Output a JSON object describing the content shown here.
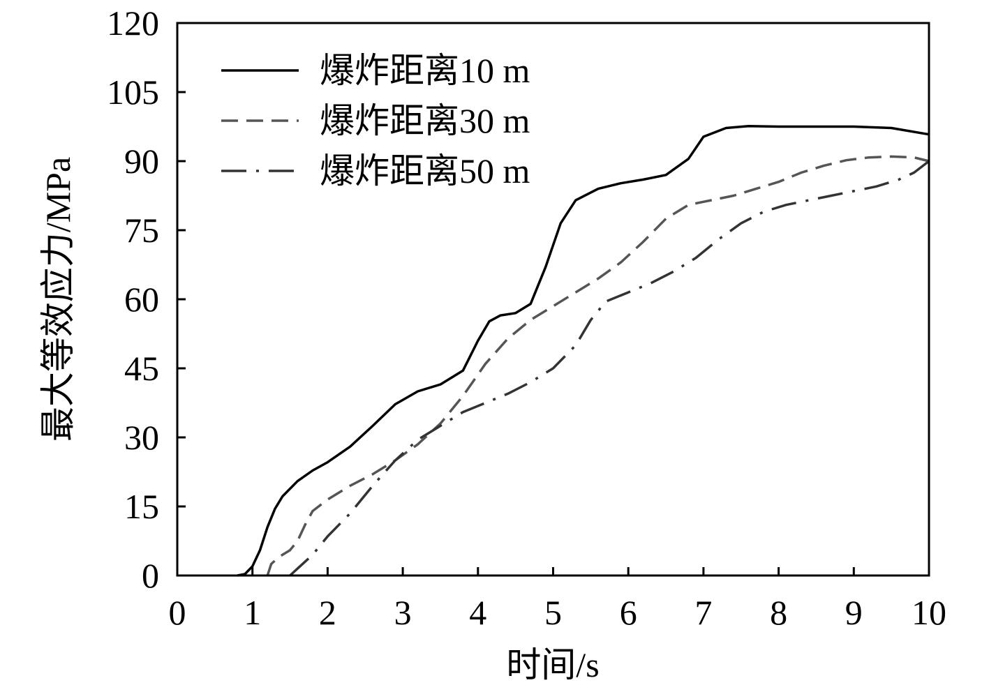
{
  "chart_data": {
    "type": "line",
    "xlabel": "时间/s",
    "ylabel": "最大等效应力/MPa",
    "xlim": [
      0,
      10
    ],
    "ylim": [
      0,
      120
    ],
    "xticks": [
      "0",
      "1",
      "2",
      "3",
      "4",
      "5",
      "6",
      "7",
      "8",
      "9",
      "10"
    ],
    "yticks": [
      "0",
      "15",
      "30",
      "45",
      "60",
      "75",
      "90",
      "105",
      "120"
    ],
    "grid": false,
    "legend_position": "top-left",
    "series": [
      {
        "name": "爆炸距离10 m",
        "color": "#000000",
        "dash": "solid",
        "points": [
          [
            0.8,
            0
          ],
          [
            0.9,
            0.3
          ],
          [
            1.0,
            2
          ],
          [
            1.1,
            5.5
          ],
          [
            1.2,
            10.5
          ],
          [
            1.3,
            14.5
          ],
          [
            1.4,
            17.2
          ],
          [
            1.6,
            20.5
          ],
          [
            1.8,
            22.8
          ],
          [
            2.0,
            24.6
          ],
          [
            2.3,
            28
          ],
          [
            2.6,
            32.5
          ],
          [
            2.9,
            37.2
          ],
          [
            3.2,
            40
          ],
          [
            3.5,
            41.5
          ],
          [
            3.8,
            44.5
          ],
          [
            4.0,
            51
          ],
          [
            4.15,
            55.2
          ],
          [
            4.3,
            56.5
          ],
          [
            4.5,
            57
          ],
          [
            4.7,
            59
          ],
          [
            4.9,
            67
          ],
          [
            5.1,
            76.5
          ],
          [
            5.3,
            81.5
          ],
          [
            5.6,
            84
          ],
          [
            5.9,
            85.2
          ],
          [
            6.2,
            86
          ],
          [
            6.5,
            87
          ],
          [
            6.8,
            90.5
          ],
          [
            7.0,
            95.3
          ],
          [
            7.3,
            97.2
          ],
          [
            7.6,
            97.6
          ],
          [
            8.0,
            97.5
          ],
          [
            8.5,
            97.5
          ],
          [
            9.0,
            97.5
          ],
          [
            9.5,
            97.2
          ],
          [
            10.0,
            95.8
          ]
        ]
      },
      {
        "name": "爆炸距离30 m",
        "color": "#555555",
        "dash": "dashed",
        "points": [
          [
            1.2,
            0
          ],
          [
            1.25,
            2.5
          ],
          [
            1.35,
            4
          ],
          [
            1.5,
            5.5
          ],
          [
            1.6,
            7.5
          ],
          [
            1.7,
            11
          ],
          [
            1.8,
            14
          ],
          [
            2.0,
            16.5
          ],
          [
            2.3,
            19.5
          ],
          [
            2.6,
            22
          ],
          [
            2.9,
            25
          ],
          [
            3.2,
            28.5
          ],
          [
            3.5,
            33
          ],
          [
            3.8,
            39
          ],
          [
            4.1,
            46
          ],
          [
            4.4,
            51.5
          ],
          [
            4.7,
            55.5
          ],
          [
            5.0,
            58.5
          ],
          [
            5.3,
            61.5
          ],
          [
            5.6,
            64.5
          ],
          [
            5.9,
            68
          ],
          [
            6.2,
            72.5
          ],
          [
            6.5,
            77.5
          ],
          [
            6.8,
            80.5
          ],
          [
            7.1,
            81.5
          ],
          [
            7.4,
            82.5
          ],
          [
            7.7,
            84
          ],
          [
            8.0,
            85.5
          ],
          [
            8.3,
            87.5
          ],
          [
            8.6,
            89
          ],
          [
            8.9,
            90.2
          ],
          [
            9.2,
            90.8
          ],
          [
            9.5,
            91
          ],
          [
            9.8,
            90.8
          ],
          [
            10.0,
            90
          ]
        ]
      },
      {
        "name": "爆炸距离50 m",
        "color": "#333333",
        "dash": "dashdot",
        "points": [
          [
            1.5,
            0
          ],
          [
            1.6,
            1.5
          ],
          [
            1.8,
            4.5
          ],
          [
            2.0,
            8.5
          ],
          [
            2.3,
            13.5
          ],
          [
            2.6,
            19.5
          ],
          [
            2.9,
            25
          ],
          [
            3.2,
            29.5
          ],
          [
            3.5,
            32.5
          ],
          [
            3.8,
            35.5
          ],
          [
            4.1,
            37.5
          ],
          [
            4.4,
            39.5
          ],
          [
            4.7,
            42
          ],
          [
            5.0,
            45
          ],
          [
            5.3,
            50
          ],
          [
            5.5,
            55.5
          ],
          [
            5.7,
            59.5
          ],
          [
            6.0,
            61.5
          ],
          [
            6.3,
            63.5
          ],
          [
            6.6,
            66
          ],
          [
            6.9,
            69
          ],
          [
            7.2,
            73
          ],
          [
            7.5,
            76.5
          ],
          [
            7.8,
            79
          ],
          [
            8.1,
            80.5
          ],
          [
            8.4,
            81.5
          ],
          [
            8.7,
            82.5
          ],
          [
            9.0,
            83.5
          ],
          [
            9.3,
            84.5
          ],
          [
            9.6,
            86
          ],
          [
            9.8,
            87.5
          ],
          [
            10.0,
            90
          ]
        ]
      }
    ]
  }
}
